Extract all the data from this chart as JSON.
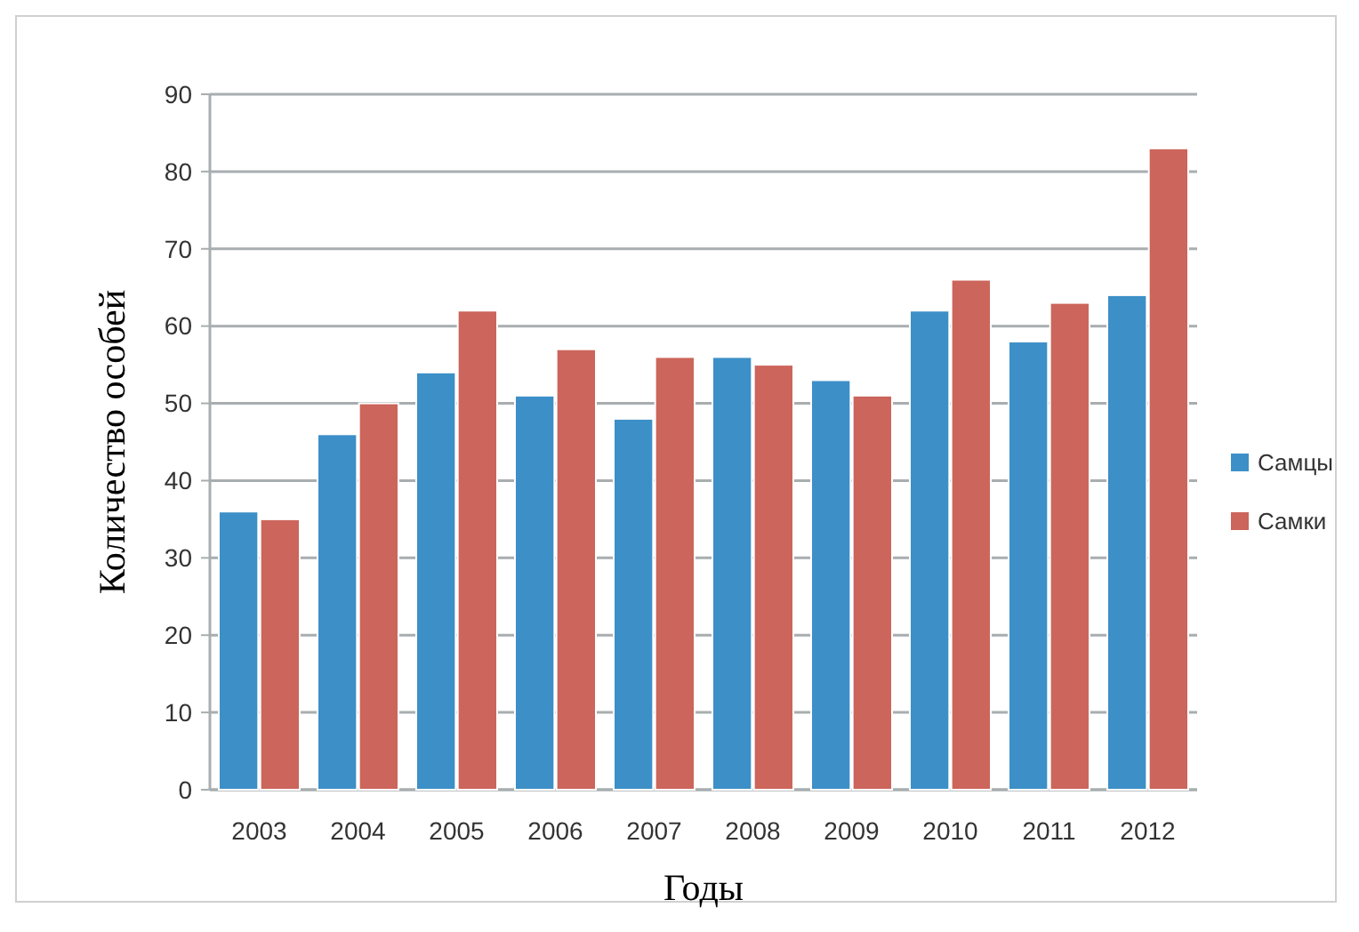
{
  "chart_data": {
    "type": "bar",
    "xlabel": "Годы",
    "ylabel": "Количество особей",
    "categories": [
      "2003",
      "2004",
      "2005",
      "2006",
      "2007",
      "2008",
      "2009",
      "2010",
      "2011",
      "2012"
    ],
    "series": [
      {
        "name": "Самцы",
        "color": "#3d8fc7",
        "values": [
          36,
          46,
          54,
          51,
          48,
          56,
          53,
          62,
          58,
          64
        ]
      },
      {
        "name": "Самки",
        "color": "#cc655b",
        "values": [
          35,
          50,
          62,
          57,
          56,
          55,
          51,
          66,
          63,
          83
        ]
      }
    ],
    "ylim": [
      0,
      90
    ],
    "yticks": [
      0,
      10,
      20,
      30,
      40,
      50,
      60,
      70,
      80,
      90
    ],
    "grid": "y",
    "legend": "right"
  }
}
